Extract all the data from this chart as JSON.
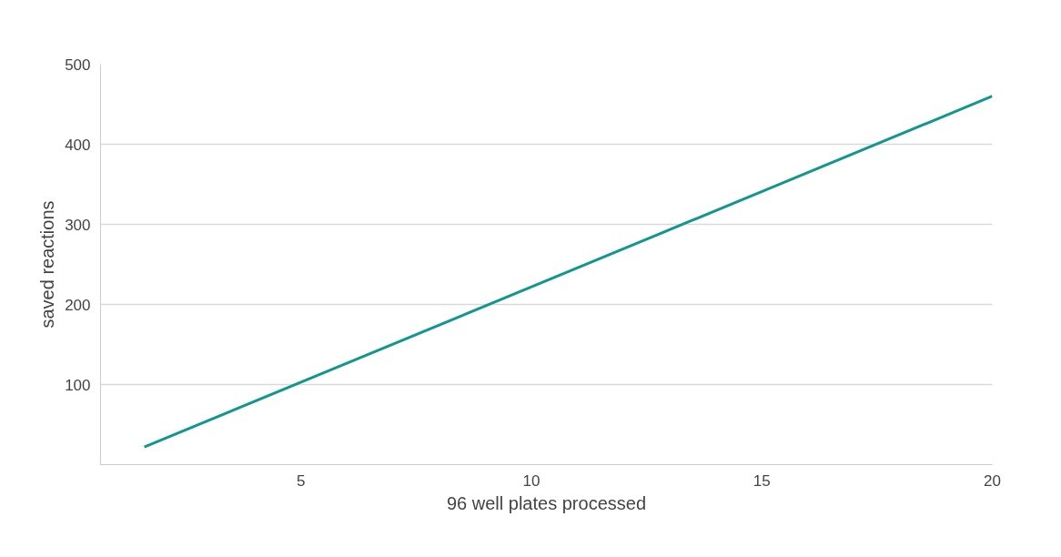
{
  "chart_data": {
    "type": "line",
    "xlabel": "96 well plates processed",
    "ylabel": "saved reactions",
    "x": [
      1.6,
      20
    ],
    "series": [
      {
        "color": "#13968f",
        "values": [
          22,
          460
        ]
      }
    ],
    "xlim": [
      0.65,
      20
    ],
    "xticks": [
      5,
      10,
      15,
      20
    ],
    "ylim": [
      0,
      500
    ],
    "yticks": [
      100,
      200,
      300,
      400,
      500
    ],
    "grid": "y"
  }
}
